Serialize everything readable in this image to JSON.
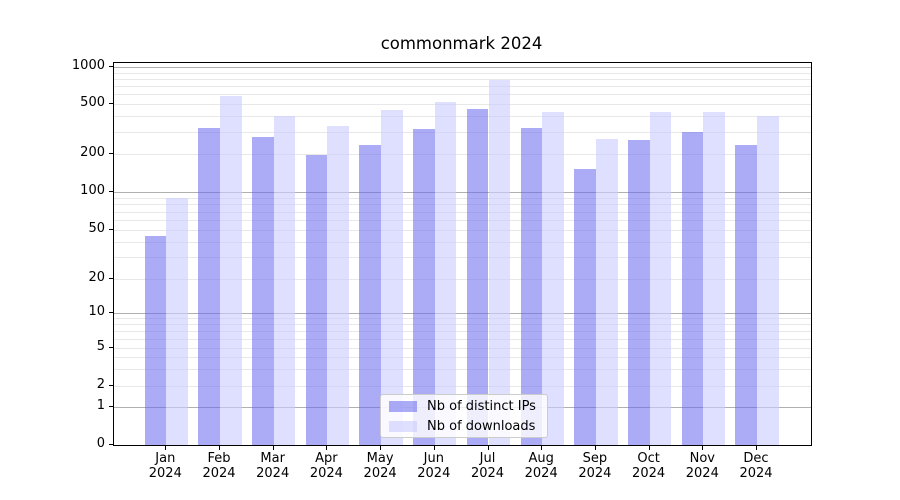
{
  "chart_data": {
    "type": "bar",
    "title": "commonmark 2024",
    "categories": [
      "Jan 2024",
      "Feb 2024",
      "Mar 2024",
      "Apr 2024",
      "May 2024",
      "Jun 2024",
      "Jul 2024",
      "Aug 2024",
      "Sep 2024",
      "Oct 2024",
      "Nov 2024",
      "Dec 2024"
    ],
    "series": [
      {
        "name": "Nb of distinct IPs",
        "color": "rgba(102,102,238,0.55)",
        "values": [
          45,
          325,
          275,
          198,
          238,
          315,
          460,
          320,
          152,
          257,
          300,
          235
        ]
      },
      {
        "name": "Nb of downloads",
        "color": "rgba(204,204,255,0.62)",
        "values": [
          90,
          580,
          400,
          335,
          450,
          520,
          790,
          430,
          265,
          435,
          435,
          405
        ]
      }
    ],
    "xlabel": "",
    "ylabel": "",
    "ylim": [
      0,
      1000
    ],
    "yscale": "symlog",
    "yticks": [
      {
        "value": 0,
        "label": "0"
      },
      {
        "value": 1,
        "label": "1"
      },
      {
        "value": 2,
        "label": "2"
      },
      {
        "value": 5,
        "label": "5"
      },
      {
        "value": 10,
        "label": "10"
      },
      {
        "value": 20,
        "label": "20"
      },
      {
        "value": 50,
        "label": "50"
      },
      {
        "value": 100,
        "label": "100"
      },
      {
        "value": 200,
        "label": "200"
      },
      {
        "value": 500,
        "label": "500"
      },
      {
        "value": 1000,
        "label": "1000"
      }
    ],
    "y_major_gridline_values": [
      1,
      10,
      100,
      1000
    ],
    "y_minor_gridline_values": [
      2,
      3,
      4,
      5,
      6,
      7,
      8,
      9,
      20,
      30,
      40,
      50,
      60,
      70,
      80,
      90,
      200,
      300,
      400,
      500,
      600,
      700,
      800,
      900
    ],
    "grid": true,
    "legend_position": "lower center",
    "colors": {
      "major_grid": "#b0b0b0",
      "minor_grid": "#e8e8e8",
      "axis": "#000000",
      "background": "#ffffff"
    }
  }
}
